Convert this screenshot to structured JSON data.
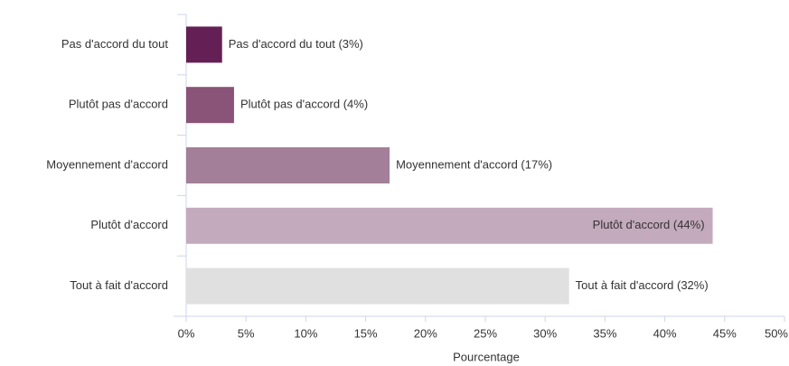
{
  "chart_data": {
    "type": "hbar",
    "categories": [
      "Pas d'accord du tout",
      "Plutôt pas d'accord",
      "Moyennement d'accord",
      "Plutôt d'accord",
      "Tout à fait d'accord"
    ],
    "values": [
      3,
      4,
      17,
      44,
      32
    ],
    "value_labels": [
      "Pas d'accord du tout (3%)",
      "Plutôt pas d'accord (4%)",
      "Moyennement d'accord (17%)",
      "Plutôt d'accord (44%)",
      "Tout à fait d'accord (32%)"
    ],
    "colors": [
      "#642055",
      "#8a5478",
      "#a47f99",
      "#c4aabd",
      "#e0e0e0"
    ],
    "xlabel": "Pourcentage",
    "xlim": [
      0,
      50
    ],
    "xticks": [
      {
        "value": 0,
        "label": "0%"
      },
      {
        "value": 5,
        "label": "5%"
      },
      {
        "value": 10,
        "label": "10%"
      },
      {
        "value": 15,
        "label": "15%"
      },
      {
        "value": 20,
        "label": "20%"
      },
      {
        "value": 25,
        "label": "25%"
      },
      {
        "value": 30,
        "label": "30%"
      },
      {
        "value": 35,
        "label": "35%"
      },
      {
        "value": 40,
        "label": "40%"
      },
      {
        "value": 45,
        "label": "45%"
      },
      {
        "value": 50,
        "label": "50%"
      }
    ]
  }
}
